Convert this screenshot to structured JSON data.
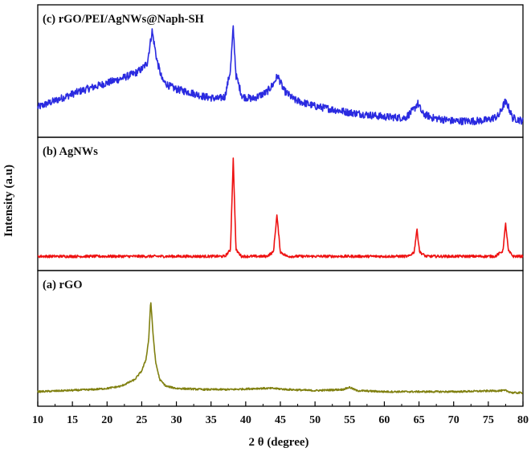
{
  "chart_data": {
    "type": "line",
    "xlabel": "2 θ (degree)",
    "ylabel": "Intensity (a.u)",
    "xlim": [
      10,
      80
    ],
    "xticks": [
      10,
      15,
      20,
      25,
      30,
      35,
      40,
      45,
      50,
      55,
      60,
      65,
      70,
      75,
      80
    ],
    "grid": false,
    "legend": "none",
    "panels": [
      {
        "label": "(c) rGO/PEI/AgNWs@Naph-SH",
        "color": "#2a2ae0",
        "noise": 0.035,
        "ylim": [
          0,
          1
        ],
        "x": [
          10,
          12,
          14,
          16,
          18,
          20,
          22,
          24,
          25,
          25.8,
          26.5,
          27.2,
          28,
          29,
          30,
          32,
          34,
          36,
          37,
          37.8,
          38.2,
          38.6,
          39.5,
          41,
          43,
          44,
          44.6,
          45.5,
          47,
          50,
          55,
          60,
          63,
          64.3,
          64.8,
          65.5,
          67,
          70,
          73,
          75,
          76.5,
          77.4,
          77.8,
          78.5,
          80
        ],
        "y": [
          0.2,
          0.25,
          0.3,
          0.35,
          0.39,
          0.43,
          0.47,
          0.52,
          0.56,
          0.62,
          0.92,
          0.64,
          0.45,
          0.4,
          0.37,
          0.34,
          0.3,
          0.28,
          0.3,
          0.55,
          0.95,
          0.5,
          0.3,
          0.28,
          0.34,
          0.42,
          0.5,
          0.36,
          0.27,
          0.21,
          0.15,
          0.11,
          0.1,
          0.18,
          0.24,
          0.14,
          0.1,
          0.07,
          0.07,
          0.08,
          0.12,
          0.25,
          0.22,
          0.1,
          0.07
        ]
      },
      {
        "label": "(b) AgNWs",
        "color": "#ee1111",
        "noise": 0.012,
        "ylim": [
          0,
          1
        ],
        "x": [
          10,
          20,
          30,
          37,
          37.8,
          38.2,
          38.6,
          39.4,
          43,
          44,
          44.5,
          45,
          46,
          50,
          60,
          63.5,
          64.3,
          64.7,
          65.1,
          66,
          70,
          76,
          77.1,
          77.5,
          77.9,
          78.6,
          80
        ],
        "y": [
          0.02,
          0.02,
          0.02,
          0.02,
          0.08,
          0.92,
          0.08,
          0.02,
          0.02,
          0.06,
          0.4,
          0.06,
          0.02,
          0.02,
          0.02,
          0.02,
          0.06,
          0.27,
          0.06,
          0.02,
          0.02,
          0.02,
          0.07,
          0.32,
          0.07,
          0.02,
          0.02
        ]
      },
      {
        "label": "(a) rGO",
        "color": "#808010",
        "noise": 0.008,
        "ylim": [
          0,
          1
        ],
        "x": [
          10,
          14,
          18,
          20,
          22,
          24,
          25,
          25.6,
          26,
          26.3,
          26.6,
          27,
          27.6,
          28.5,
          30,
          34,
          38,
          42,
          44,
          46,
          50,
          54,
          55,
          56,
          60,
          70,
          77.5,
          78.5,
          80
        ],
        "y": [
          0.03,
          0.04,
          0.05,
          0.06,
          0.08,
          0.14,
          0.22,
          0.32,
          0.5,
          0.86,
          0.58,
          0.3,
          0.14,
          0.08,
          0.06,
          0.05,
          0.05,
          0.06,
          0.06,
          0.05,
          0.04,
          0.05,
          0.07,
          0.04,
          0.03,
          0.03,
          0.04,
          0.02,
          0.02
        ]
      }
    ]
  }
}
